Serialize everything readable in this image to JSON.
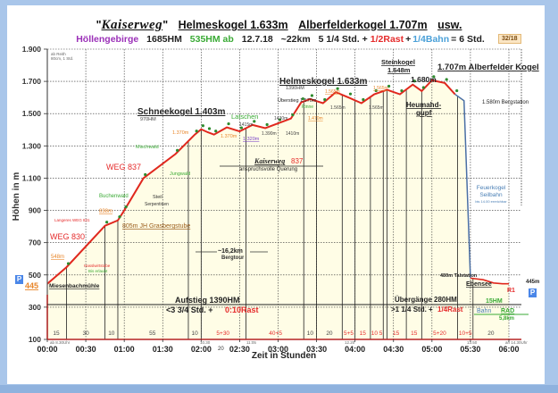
{
  "header": {
    "title_quote_open": "\"",
    "title_name": "Kaiserweg",
    "title_quote_close": "\"",
    "title_peak1": "Helmeskogel 1.633m",
    "title_peak2": "Alberfelderkogel 1.707m",
    "title_etc": "usw.",
    "region": "Höllengebirge",
    "ascent": "1685HM",
    "descent": "535HM ab",
    "date": "12.7.18",
    "distance": "~22km",
    "walk": "5 1/4 Std. +",
    "rest": "1/2Rast",
    "plus": "+",
    "train": "1/4Bahn",
    "total": "= 6 Std.",
    "badge": "32/18"
  },
  "colors": {
    "plot_bg": "#fffde6",
    "profile_line": "#e0281e",
    "frame": "#b52525",
    "window": "#a9c6ea",
    "title_purple": "#9b30b8",
    "green": "#3aaa35",
    "red": "#e52b2b",
    "orange": "#e8862a",
    "blue": "#4aa0d8"
  },
  "chart_data": {
    "type": "line",
    "title": "\"Kaiserweg\" Helmeskogel 1.633m Alberfelderkogel 1.707m usw.",
    "subtitle": "Höllengebirge 1685HM 535HM ab 12.7.18 ~22km 5 1/4 Std. + 1/2Rast + 1/4Bahn = 6 Std.",
    "xlabel": "Zeit in Stunden",
    "ylabel": "Höhen in m",
    "ylim": [
      100,
      1900
    ],
    "xlim_minutes": [
      0,
      360
    ],
    "grid": true,
    "y_ticks": [
      100,
      300,
      500,
      700,
      900,
      1100,
      1300,
      1500,
      1700,
      1900
    ],
    "y_tick_labels": [
      "100",
      "300",
      "500",
      "700",
      "900",
      "1.100",
      "1.300",
      "1.500",
      "1.700",
      "1.900"
    ],
    "x_ticks": [
      "00:00",
      "00:30",
      "01:00",
      "01:30",
      "02:00",
      "02:30",
      "03:00",
      "03:30",
      "04:00",
      "04:30",
      "05:00",
      "05:30",
      "06:00"
    ],
    "profile": {
      "minutes": [
        0,
        15,
        45,
        55,
        60,
        75,
        100,
        115,
        120,
        125,
        130,
        140,
        150,
        160,
        170,
        180,
        190,
        198,
        205,
        215,
        225,
        235,
        245,
        255,
        265,
        275,
        285,
        292,
        300,
        310,
        318,
        325,
        330,
        340,
        348,
        355,
        360
      ],
      "elevation": [
        445,
        548,
        805,
        838,
        900,
        1100,
        1250,
        1370,
        1403,
        1385,
        1370,
        1415,
        1390,
        1430,
        1410,
        1440,
        1470,
        1570,
        1590,
        1565,
        1633,
        1600,
        1565,
        1620,
        1648,
        1620,
        1680,
        1640,
        1707,
        1690,
        1620,
        1580,
        480,
        470,
        450,
        445,
        445
      ]
    },
    "peaks": [
      {
        "name": "Schneekogel 1.403m",
        "sub": "970HM"
      },
      {
        "name": "Helmeskogel 1.633m",
        "sub": "1390HM"
      },
      {
        "name": "Steinkogel 1.648m"
      },
      {
        "name": "1.680m"
      },
      {
        "name": "1.707m Alberfelder Kogel"
      }
    ],
    "segment_minutes": [
      "15",
      "30",
      "10",
      "55",
      "10",
      "5+30",
      "40+5",
      "10",
      "20",
      "5+5",
      "15",
      "10 5",
      "15",
      "15",
      "5+20",
      "10+5",
      "20"
    ],
    "annotations": [
      "Miesenbachmühle",
      "548m",
      "WEG 830",
      "Langeres WEG 831",
      "838m",
      "805m JH Grasbergstube",
      "Buchenwald",
      "Steil Serpentinen",
      "Forststraße",
      "Hasslwirtstube Bis erlaubt",
      "WEG 837",
      "Jungwald",
      "Mischwald",
      "Schneekogel 1.403m",
      "970HM",
      "Latschen",
      "1.370m",
      "1.370m",
      "1.320m",
      "1415m",
      "1.390m",
      "1430m",
      "1410m",
      "1.470m",
      "Kaiserweg 837",
      "anspruchsvolle Querung",
      "~16,2km Bergtour",
      "Überstieg 1.570m",
      "Rinne",
      "1.565m",
      "1.565m",
      "Heumahd-gupf",
      "1.580m Bergstation",
      "Feuerkogel Seilbahn",
      "480m Talstation",
      "Ebensee",
      "R1",
      "445m",
      "Aufstieg 1390HM",
      "<3 3/4 Std. + 0:10Rast",
      "Übergänge 280HM",
      ">1 1/4 Std. + 1/4Rast",
      "15HM",
      "Bahn",
      "RAD",
      "5,8km",
      "ab 8.30Uhr",
      "10.30",
      "11:05",
      "12.20",
      "13.50",
      "an 14.30Uhr",
      "20"
    ]
  },
  "axes": {
    "ylabel": "Höhen in m",
    "xlabel": "Zeit in Stunden",
    "yticks": [
      "1.900",
      "1.700",
      "1.500",
      "1.300",
      "1.100",
      "900",
      "700",
      "500",
      "300",
      "100"
    ],
    "xticks": [
      "00:00",
      "00:30",
      "01:00",
      "01:30",
      "02:00",
      "02:30",
      "03:00",
      "03:30",
      "04:00",
      "04:30",
      "05:00",
      "05:30",
      "06:00"
    ],
    "corner_note1": "ab Reith",
    "corner_note2": "80cm, 1 Std.",
    "left_elev": "445",
    "parking": "P"
  },
  "labels": {
    "schneekogel": "Schneekogel 1.403m",
    "schnee_hm": "970HM",
    "helmeskogel": "Helmeskogel 1.633m",
    "helmes_hm": "1390HM",
    "steinkogel1": "Steinkogel",
    "steinkogel2": "1.648m",
    "p1680": "1.680m",
    "alberfelder": "1.707m Alberfelder Kogel",
    "bergstation": "1.580m Bergstation",
    "heumahd1": "Heumahd-",
    "heumahd2": "gupf",
    "ueberstieg": "Überstieg 1.570m",
    "rinne": "Rinne",
    "m1565a": "1.565m",
    "m1565b": "1.565m",
    "latschen": "Latschen",
    "m1415": "1415m",
    "m1390": "1.390m",
    "m1430": "1430m",
    "m1410": "1410m",
    "m1470": "1.470m",
    "m1370a": "1.370m",
    "m1370b": "1.370m",
    "m1320": "1.320m",
    "kaiserweg": "Kaiserweg",
    "weg837b": "837",
    "querung": "anspruchsvolle Querung",
    "weg837": "WEG 837",
    "mischwald": "Mischwald",
    "jungwald": "Jungwald",
    "buchenwald": "Buchenwald",
    "steil": "Steil",
    "serpentinen": "Serpentinen",
    "forststrasse": "Forststraße",
    "weg830": "WEG 830",
    "m548": "548m",
    "m838": "838m",
    "langeres": "Langeres WEG 831",
    "grasberg": "805m JH Grasbergstube",
    "hassl": "Hasslwirtstube",
    "bis": "Bis erlaubt",
    "miesenbach": "Miesenbachmühle",
    "bergtour_km": "~16,2km",
    "bergtour": "Bergtour",
    "aufstieg": "Aufstieg 1390HM",
    "aufstieg_time": "<3 3/4 Std. +",
    "aufstieg_rest": "0:10Rast",
    "uebergaenge": "Übergänge 280HM",
    "uebergaenge_time": ">1 1/4 Std. +",
    "uebergaenge_rest": "1/4Rast",
    "feuerkogel1": "Feuerkogel",
    "feuerkogel2": "Seilbahn",
    "feuerkogel3": "bis 14.00 erreichbar",
    "talstation": "480m Talstation",
    "ebensee": "Ebensee",
    "r1": "R1",
    "m445": "445m",
    "hm15": "15HM",
    "bahn": "Bahn",
    "rad": "RAD",
    "km58": "5,8km",
    "t_start": "ab 8.30Uhr",
    "t_1030": "10.30",
    "t_1105": "11:05",
    "t_1220": "12.20",
    "t_1350": "13.50",
    "t_end": "an 14.30Uhr",
    "t_20": "20"
  },
  "segments": [
    "15",
    "30",
    "10",
    "55",
    "10",
    "5+30",
    "40+5",
    "10",
    "20",
    "5+5",
    "15",
    "10 5",
    "15",
    "15",
    "5+20",
    "10+5",
    "20"
  ]
}
